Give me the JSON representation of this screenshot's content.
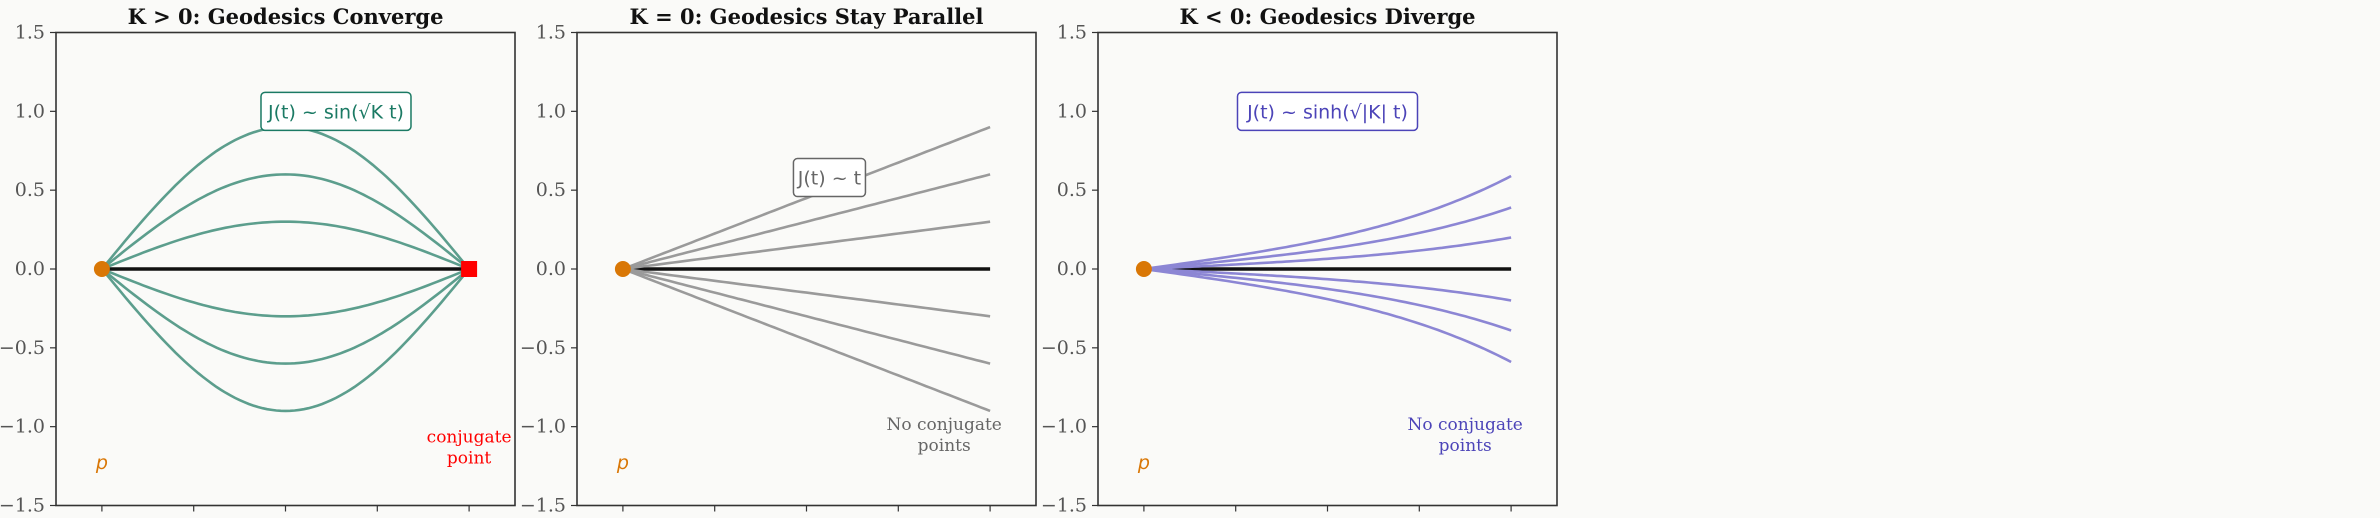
{
  "chart_data": [
    {
      "type": "line",
      "title": "K > 0: Geodesics Converge",
      "xlim": [
        -0.5,
        4.5
      ],
      "ylim": [
        -1.5,
        1.5
      ],
      "xticks": [
        "0",
        "1",
        "2",
        "3",
        "4"
      ],
      "yticks": [
        "1.5",
        "1.0",
        "0.5",
        "0.0",
        "−0.5",
        "−1.0",
        "−1.5"
      ],
      "grid": false,
      "curve_formula": "a·sin(πt/4)",
      "amplitudes": [
        0.9,
        0.6,
        0.3,
        -0.3,
        -0.6,
        -0.9
      ],
      "t_range": [
        0,
        4
      ],
      "color": "#5c9e8d",
      "annotation": "J(t) ~ sin(√K t)",
      "annotation_color": "#1b7a64",
      "base_point_label": "p",
      "end_marker": {
        "x": 4,
        "y": 0,
        "color": "#ff0000"
      },
      "note": [
        "conjugate",
        "point"
      ],
      "note_color": "#ff0000"
    },
    {
      "type": "line",
      "title": "K = 0: Geodesics Stay Parallel",
      "xlim": [
        -0.5,
        4.5
      ],
      "ylim": [
        -1.5,
        1.5
      ],
      "xticks": [
        "0",
        "1",
        "2",
        "3",
        "4"
      ],
      "yticks": [
        "1.5",
        "1.0",
        "0.5",
        "0.0",
        "−0.5",
        "−1.0",
        "−1.5"
      ],
      "grid": false,
      "curve_formula": "a·t/4",
      "amplitudes": [
        0.9,
        0.6,
        0.3,
        -0.3,
        -0.6,
        -0.9
      ],
      "t_range": [
        0,
        4
      ],
      "color": "#9a9a9a",
      "annotation": "J(t) ~ t",
      "annotation_color": "#666666",
      "base_point_label": "p",
      "note": [
        "No conjugate",
        "points"
      ],
      "note_color": "#666666"
    },
    {
      "type": "line",
      "title": "K < 0: Geodesics Diverge",
      "xlim": [
        -0.5,
        4.5
      ],
      "ylim": [
        -1.5,
        1.5
      ],
      "xticks": [
        "0",
        "1",
        "2",
        "3",
        "4"
      ],
      "yticks": [
        "1.5",
        "1.0",
        "0.5",
        "0.0",
        "−0.5",
        "−1.0",
        "−1.5"
      ],
      "grid": false,
      "curve_formula": "a·sinh(t/2)/sinh(2)",
      "amplitudes": [
        0.59,
        0.39,
        0.2,
        -0.2,
        -0.39,
        -0.59
      ],
      "t_range": [
        0,
        4
      ],
      "color": "#8c86d4",
      "annotation": "J(t) ~ sinh(√|K| t)",
      "annotation_color": "#4c44b8",
      "base_point_label": "p",
      "note": [
        "No conjugate",
        "points"
      ],
      "note_color": "#4c44b8"
    }
  ],
  "colors": {
    "base_point": "#d97706",
    "geodesic": "#111111",
    "background": "#fafaf8"
  }
}
